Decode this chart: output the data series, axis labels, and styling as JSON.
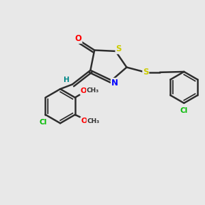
{
  "bg_color": "#e8e8e8",
  "bond_color": "#2d2d2d",
  "atom_colors": {
    "O": "#ff0000",
    "S": "#cccc00",
    "N": "#0000ff",
    "Cl": "#00bb00",
    "H": "#008888",
    "C": "#2d2d2d"
  }
}
